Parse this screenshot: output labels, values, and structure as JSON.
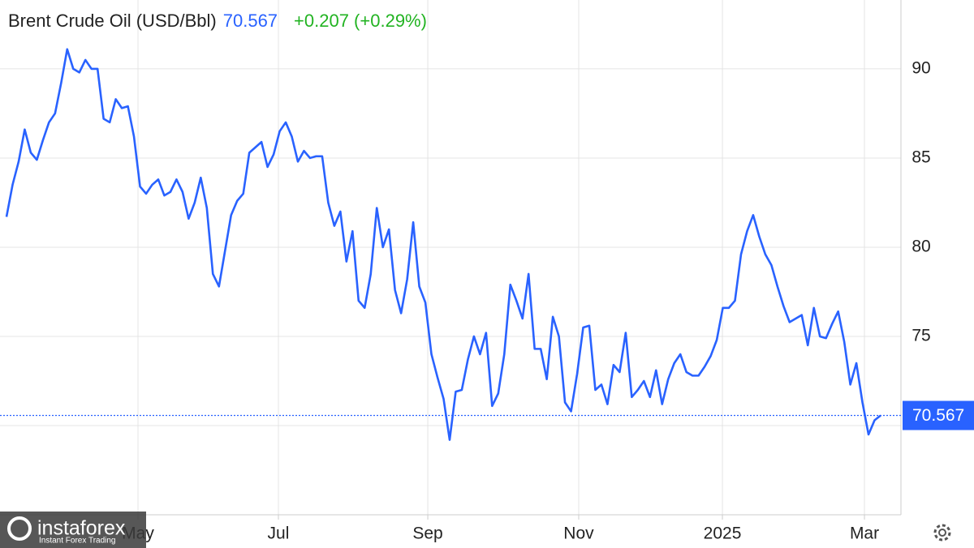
{
  "chart_data": {
    "type": "line",
    "title": "Brent Crude Oil (USD/Bbl)",
    "change": "+0.207 (+0.29%)",
    "watermark": {
      "brand": "instaforex",
      "tagline": "Instant Forex Trading"
    },
    "color": "#2962ff",
    "values": [
      81.7,
      83.5,
      84.8,
      86.6,
      85.3,
      84.9,
      86.0,
      87.0,
      87.5,
      89.2,
      91.1,
      90.0,
      89.8,
      90.5,
      90.0,
      90.0,
      87.2,
      87.0,
      88.3,
      87.8,
      87.9,
      86.2,
      83.4,
      83.0,
      83.5,
      83.8,
      82.9,
      83.1,
      83.8,
      83.1,
      81.6,
      82.5,
      83.9,
      82.2,
      78.5,
      77.8,
      79.8,
      81.8,
      82.6,
      83.0,
      85.3,
      85.6,
      85.9,
      84.5,
      85.2,
      86.5,
      87.0,
      86.2,
      84.8,
      85.4,
      85.0,
      85.1,
      85.1,
      82.5,
      81.2,
      82.0,
      79.2,
      80.9,
      77.0,
      76.6,
      78.5,
      82.2,
      80.0,
      81.0,
      77.6,
      76.3,
      78.2,
      81.4,
      77.8,
      76.9,
      74.0,
      72.7,
      71.5,
      69.2,
      71.9,
      72.0,
      73.7,
      75.0,
      74.0,
      75.2,
      71.1,
      71.8,
      74.0,
      77.9,
      77.0,
      76.0,
      78.5,
      74.3,
      74.3,
      72.6,
      76.1,
      75.0,
      71.3,
      70.8,
      72.9,
      75.5,
      75.6,
      72.0,
      72.3,
      71.2,
      73.4,
      73.0,
      75.2,
      71.6,
      72.0,
      72.5,
      71.6,
      73.1,
      71.2,
      72.6,
      73.5,
      74.0,
      73.0,
      72.8,
      72.8,
      73.3,
      73.9,
      74.8,
      76.6,
      76.6,
      77.0,
      79.6,
      80.9,
      81.8,
      80.6,
      79.6,
      79.0,
      77.8,
      76.7,
      75.8,
      76.0,
      76.2,
      74.5,
      76.6,
      75.0,
      74.9,
      75.7,
      76.4,
      74.7,
      72.3,
      73.5,
      71.3,
      69.5,
      70.3,
      70.567
    ],
    "xticks": [
      {
        "value": 21.66,
        "label": "May"
      },
      {
        "value": 44.79,
        "label": "Jul"
      },
      {
        "value": 69.4,
        "label": "Sep"
      },
      {
        "value": 94.26,
        "label": "Nov"
      },
      {
        "value": 117.93,
        "label": "2025"
      },
      {
        "value": 141.33,
        "label": "Mar"
      }
    ],
    "ylim": [
      65,
      93.86
    ],
    "yticks": [
      70,
      75,
      80,
      85,
      90
    ],
    "grid": true
  }
}
